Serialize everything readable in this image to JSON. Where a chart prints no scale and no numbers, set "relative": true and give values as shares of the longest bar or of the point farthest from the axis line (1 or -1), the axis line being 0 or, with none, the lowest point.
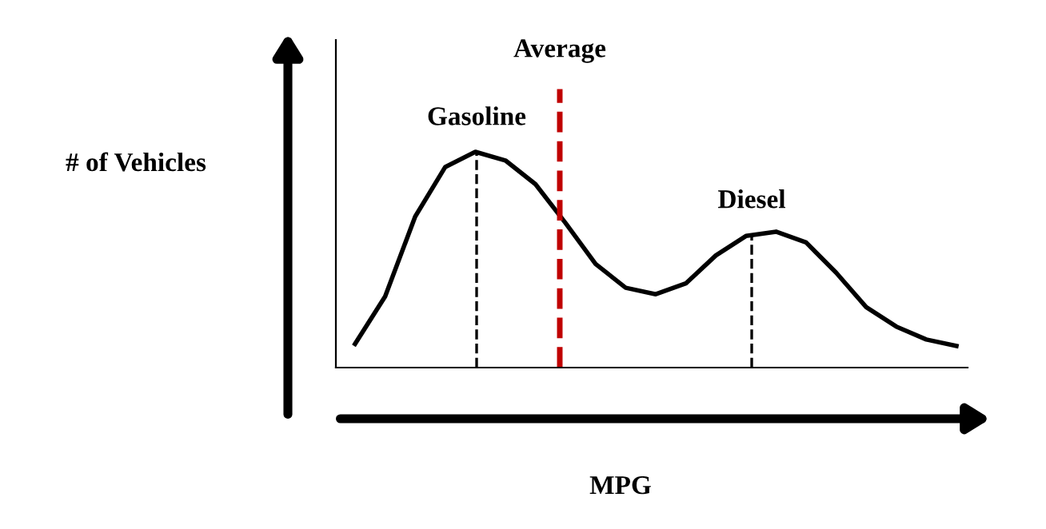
{
  "chart_data": {
    "type": "line",
    "relative": true,
    "xlabel": "MPG",
    "ylabel": "# of Vehicles",
    "categories": [
      null,
      null,
      null,
      null,
      null,
      null,
      null,
      null,
      null,
      null,
      null,
      null,
      null,
      null,
      null,
      null,
      null,
      null,
      null,
      null,
      null
    ],
    "series": [
      {
        "color": "#000000",
        "values": [
          0.11,
          0.33,
          0.7,
          0.93,
          1,
          0.96,
          0.85,
          0.67,
          0.48,
          0.37,
          0.34,
          0.39,
          0.52,
          0.61,
          0.63,
          0.58,
          0.44,
          0.28,
          0.19,
          0.13,
          0.1
        ]
      }
    ],
    "annotations": [
      "Gasoline",
      "Average",
      "Diesel"
    ],
    "marker": "none",
    "line_style": "solid"
  }
}
